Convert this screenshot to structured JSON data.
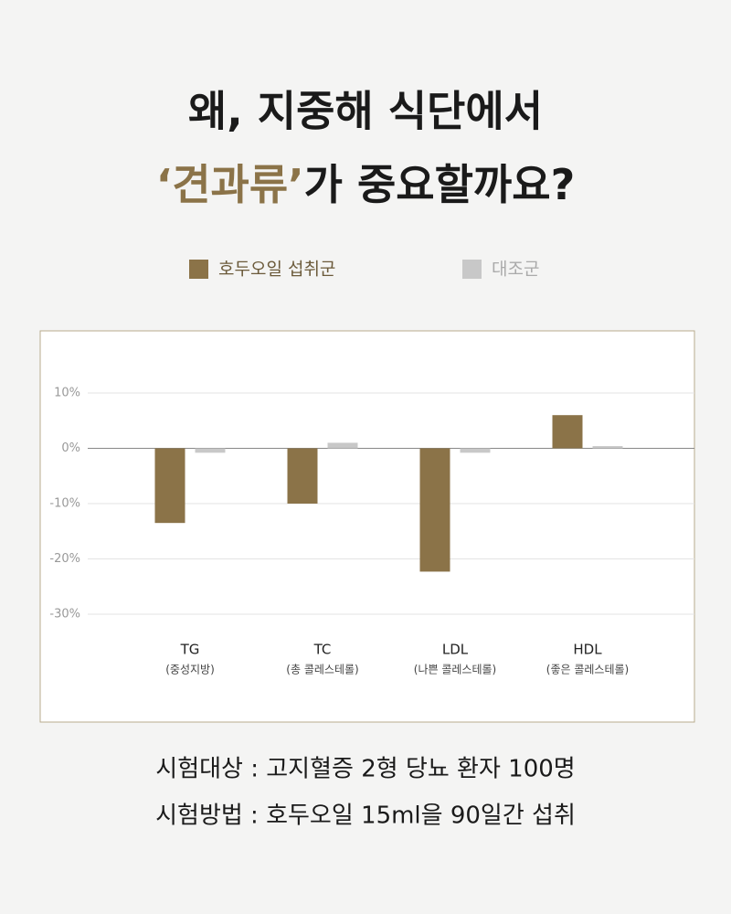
{
  "header": {
    "title_line1": "왜, 지중해 식단에서",
    "title_line2": [
      "‘견과류’",
      "가 중요할까요?"
    ]
  },
  "chart_data": {
    "type": "bar",
    "categories": [
      "TG",
      "TC",
      "LDL",
      "HDL"
    ],
    "category_sublabels": [
      "(중성지방)",
      "(총 콜레스테롤)",
      "(나쁜 콜레스테롤)",
      "(좋은 콜레스테롤)"
    ],
    "series": [
      {
        "name": "호두오일 섭취군",
        "color": "#8b7348",
        "values": [
          -13.5,
          -10,
          -22.3,
          6
        ]
      },
      {
        "name": "대조군",
        "color": "#c8c8c8",
        "values": [
          -0.8,
          1,
          -0.8,
          0.4
        ]
      }
    ],
    "ylim": [
      -30,
      10
    ],
    "yticks": [
      {
        "value": 10,
        "label": "10%"
      },
      {
        "value": 0,
        "label": "0%"
      },
      {
        "value": -10,
        "label": "-10%"
      },
      {
        "value": -20,
        "label": "-20%"
      },
      {
        "value": -30,
        "label": "-30%"
      }
    ],
    "grid": true
  },
  "footer": {
    "lines": [
      "시험대상 : 고지혈증 2형 당뇨 환자 100명",
      "시험방법 : 호두오일 15ml을 90일간 섭취"
    ]
  }
}
